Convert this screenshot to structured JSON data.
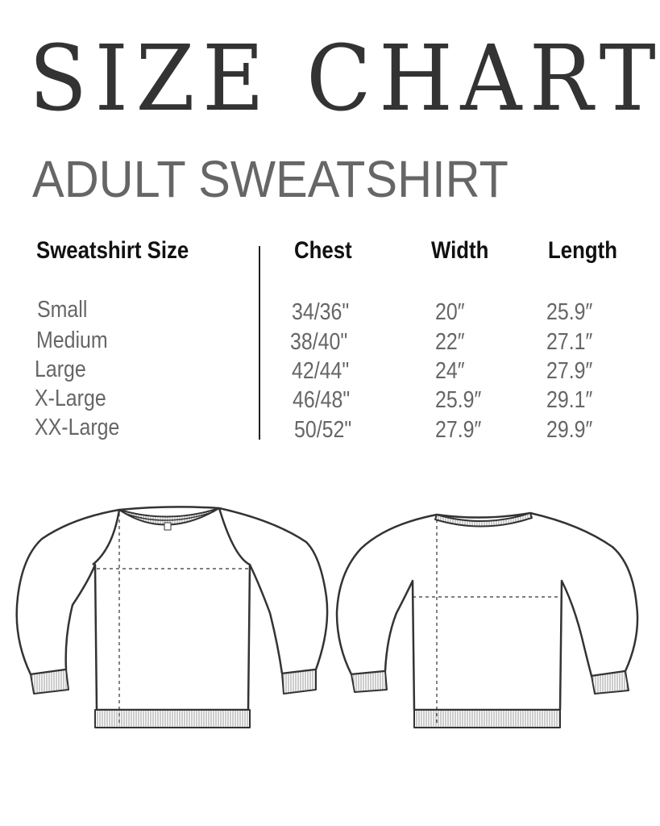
{
  "title": "SIZE CHART",
  "subtitle": "ADULT SWEATSHIRT",
  "table": {
    "headers": [
      "Sweatshirt Size",
      "Chest",
      "Width",
      "Length"
    ],
    "rows": [
      [
        "Small",
        "34/36\"",
        "20″",
        "25.9″"
      ],
      [
        "Medium",
        "38/40\"",
        "22″",
        "27.1″"
      ],
      [
        "Large",
        "42/44\"",
        "24″",
        "27.9″"
      ],
      [
        "X-Large",
        "46/48\"",
        "25.9″",
        "29.1″"
      ],
      [
        "XX-Large",
        "50/52\"",
        "27.9″",
        "29.9″"
      ]
    ]
  },
  "illustrations": [
    "sweatshirt-front",
    "sweatshirt-back"
  ]
}
